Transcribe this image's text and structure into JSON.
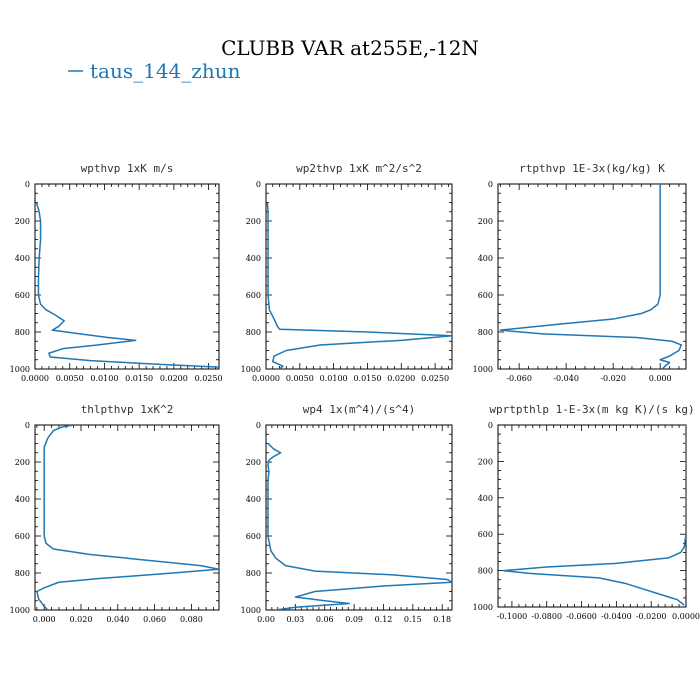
{
  "figure": {
    "title": "CLUBB VAR at255E,-12N",
    "legend_label": "taus_144_zhun",
    "legend_color": "#1f77b4"
  },
  "chart_data": [
    {
      "type": "line",
      "title": "wpthvp  1xK m/s",
      "xlim": [
        0,
        0.0265
      ],
      "ylim": [
        1000,
        0
      ],
      "x_ticks": [
        "0.0000",
        "0.0050",
        "0.0100",
        "0.0150",
        "0.0200",
        "0.0250"
      ],
      "x_tick_values": [
        0,
        0.005,
        0.01,
        0.015,
        0.02,
        0.025
      ],
      "y_ticks": [
        0,
        200,
        400,
        600,
        800,
        1000
      ],
      "series": [
        {
          "values": [
            [
              0.0002,
              100
            ],
            [
              0.0006,
              150
            ],
            [
              0.0008,
              200
            ],
            [
              0.0008,
              300
            ],
            [
              0.0006,
              400
            ],
            [
              0.0005,
              500
            ],
            [
              0.0005,
              600
            ],
            [
              0.0008,
              650
            ],
            [
              0.0016,
              680
            ],
            [
              0.003,
              710
            ],
            [
              0.0042,
              740
            ],
            [
              0.0034,
              770
            ],
            [
              0.0025,
              790
            ],
            [
              0.0065,
              810
            ],
            [
              0.0105,
              830
            ],
            [
              0.0145,
              845
            ],
            [
              0.009,
              870
            ],
            [
              0.004,
              890
            ],
            [
              0.002,
              915
            ],
            [
              0.0022,
              935
            ],
            [
              0.008,
              955
            ],
            [
              0.018,
              975
            ],
            [
              0.0265,
              990
            ]
          ]
        }
      ]
    },
    {
      "type": "line",
      "title": "wp2thvp  1xK m^2/s^2",
      "xlim": [
        0,
        0.0275
      ],
      "ylim": [
        1000,
        0
      ],
      "x_ticks": [
        "0.0000",
        "0.0050",
        "0.0100",
        "0.0150",
        "0.0200",
        "0.0250"
      ],
      "x_tick_values": [
        0,
        0.005,
        0.01,
        0.015,
        0.02,
        0.025
      ],
      "y_ticks": [
        0,
        200,
        400,
        600,
        800,
        1000
      ],
      "series": [
        {
          "values": [
            [
              0.0002,
              100
            ],
            [
              0.0003,
              150
            ],
            [
              0.0003,
              250
            ],
            [
              0.0003,
              400
            ],
            [
              0.0003,
              600
            ],
            [
              0.0005,
              680
            ],
            [
              0.0012,
              730
            ],
            [
              0.0017,
              770
            ],
            [
              0.002,
              785
            ],
            [
              0.015,
              800
            ],
            [
              0.0275,
              820
            ],
            [
              0.02,
              845
            ],
            [
              0.008,
              870
            ],
            [
              0.003,
              900
            ],
            [
              0.0012,
              930
            ],
            [
              0.001,
              960
            ],
            [
              0.0025,
              985
            ],
            [
              0.002,
              1000
            ]
          ]
        }
      ]
    },
    {
      "type": "line",
      "title": "rtpthvp  1E-3x(kg/kg) K",
      "xlim": [
        -0.069,
        0.011
      ],
      "ylim": [
        1000,
        0
      ],
      "x_ticks": [
        "-0.060",
        "-0.040",
        "-0.020",
        "0.000"
      ],
      "x_tick_values": [
        -0.06,
        -0.04,
        -0.02,
        0
      ],
      "y_ticks": [
        0,
        200,
        400,
        600,
        800,
        1000
      ],
      "series": [
        {
          "values": [
            [
              0.0,
              0
            ],
            [
              0.0,
              200
            ],
            [
              0.0,
              400
            ],
            [
              0.0,
              600
            ],
            [
              -0.001,
              650
            ],
            [
              -0.004,
              680
            ],
            [
              -0.008,
              700
            ],
            [
              -0.02,
              730
            ],
            [
              -0.045,
              760
            ],
            [
              -0.068,
              790
            ],
            [
              -0.05,
              810
            ],
            [
              -0.01,
              830
            ],
            [
              0.005,
              850
            ],
            [
              0.009,
              870
            ],
            [
              0.008,
              900
            ],
            [
              0.004,
              930
            ],
            [
              0.0,
              950
            ],
            [
              0.004,
              965
            ],
            [
              0.002,
              985
            ],
            [
              0.001,
              1000
            ]
          ]
        }
      ]
    },
    {
      "type": "line",
      "title": "thlpthvp  1xK^2",
      "xlim": [
        -0.005,
        0.095
      ],
      "ylim": [
        1000,
        0
      ],
      "x_ticks": [
        "0.000",
        "0.020",
        "0.040",
        "0.060",
        "0.080"
      ],
      "x_tick_values": [
        0,
        0.02,
        0.04,
        0.06,
        0.08
      ],
      "y_ticks": [
        0,
        200,
        400,
        600,
        800,
        1000
      ],
      "series": [
        {
          "values": [
            [
              0.016,
              0
            ],
            [
              0.01,
              10
            ],
            [
              0.005,
              30
            ],
            [
              0.002,
              70
            ],
            [
              0.0,
              120
            ],
            [
              0.0,
              200
            ],
            [
              0.0,
              400
            ],
            [
              0.0,
              600
            ],
            [
              0.001,
              640
            ],
            [
              0.005,
              670
            ],
            [
              0.025,
              700
            ],
            [
              0.085,
              760
            ],
            [
              0.095,
              780
            ],
            [
              0.07,
              800
            ],
            [
              0.03,
              830
            ],
            [
              0.008,
              850
            ],
            [
              0.0,
              880
            ],
            [
              -0.004,
              900
            ],
            [
              -0.003,
              940
            ],
            [
              0.0,
              980
            ],
            [
              0.002,
              1000
            ]
          ]
        }
      ]
    },
    {
      "type": "line",
      "title": "wp4  1x(m^4)/(s^4)",
      "xlim": [
        0,
        0.19
      ],
      "ylim": [
        1000,
        0
      ],
      "x_ticks": [
        "0.00",
        "0.03",
        "0.06",
        "0.09",
        "0.12",
        "0.15",
        "0.18"
      ],
      "x_tick_values": [
        0,
        0.03,
        0.06,
        0.09,
        0.12,
        0.15,
        0.18
      ],
      "y_ticks": [
        0,
        200,
        400,
        600,
        800,
        1000
      ],
      "series": [
        {
          "values": [
            [
              0.002,
              100
            ],
            [
              0.008,
              130
            ],
            [
              0.015,
              150
            ],
            [
              0.008,
              170
            ],
            [
              0.003,
              190
            ],
            [
              0.002,
              220
            ],
            [
              0.003,
              250
            ],
            [
              0.002,
              300
            ],
            [
              0.002,
              400
            ],
            [
              0.002,
              600
            ],
            [
              0.005,
              680
            ],
            [
              0.01,
              720
            ],
            [
              0.02,
              760
            ],
            [
              0.05,
              790
            ],
            [
              0.13,
              810
            ],
            [
              0.185,
              835
            ],
            [
              0.19,
              850
            ],
            [
              0.12,
              870
            ],
            [
              0.05,
              900
            ],
            [
              0.03,
              930
            ],
            [
              0.06,
              950
            ],
            [
              0.085,
              965
            ],
            [
              0.03,
              985
            ],
            [
              0.01,
              1000
            ]
          ]
        }
      ]
    },
    {
      "type": "line",
      "title": "wprtpthlp  1-E-3x(m kg K)/(s kg)",
      "xlim": [
        -0.108,
        0
      ],
      "ylim": [
        1000,
        0
      ],
      "x_ticks": [
        "-0.1000",
        "-0.0800",
        "-0.0600",
        "-0.0400",
        "-0.0200",
        "0.0000"
      ],
      "x_tick_values": [
        -0.1,
        -0.08,
        -0.06,
        -0.04,
        -0.02,
        0
      ],
      "y_ticks": [
        0,
        200,
        400,
        600,
        800,
        1000
      ],
      "series": [
        {
          "values": [
            [
              0.0,
              0
            ],
            [
              0.0,
              200
            ],
            [
              0.0,
              400
            ],
            [
              0.0,
              600
            ],
            [
              -0.001,
              670
            ],
            [
              -0.003,
              700
            ],
            [
              -0.01,
              730
            ],
            [
              -0.04,
              760
            ],
            [
              -0.08,
              780
            ],
            [
              -0.105,
              800
            ],
            [
              -0.09,
              815
            ],
            [
              -0.05,
              840
            ],
            [
              -0.035,
              870
            ],
            [
              -0.025,
              900
            ],
            [
              -0.015,
              930
            ],
            [
              -0.005,
              960
            ],
            [
              -0.001,
              990
            ]
          ]
        }
      ]
    }
  ]
}
